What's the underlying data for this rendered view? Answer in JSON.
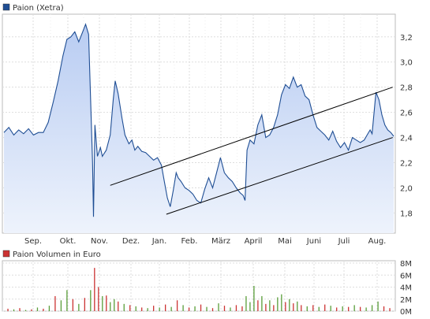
{
  "chart_data": [
    {
      "type": "area",
      "legend": "Paion (Xetra)",
      "currency": "",
      "x_ticks": [
        "Sep.",
        "Okt.",
        "Nov.",
        "Dez.",
        "Jan.",
        "Feb.",
        "März",
        "April",
        "Mai",
        "Juni",
        "Juli",
        "Aug."
      ],
      "y_ticks": [
        "3,2",
        "3,0",
        "2,8",
        "2,6",
        "2,4",
        "2,2",
        "2,0",
        "1,8"
      ],
      "y_tick_values": [
        3.2,
        3.0,
        2.8,
        2.6,
        2.4,
        2.2,
        2.0,
        1.8
      ],
      "ylim": [
        1.64,
        3.38
      ],
      "grid": true,
      "colors": {
        "line": "#1f4e94",
        "fill_top": "#b8ccf2",
        "fill_bottom": "#eef3fc",
        "trend": "#000000"
      },
      "series": [
        {
          "name": "Paion (Xetra)",
          "points": [
            [
              0.0,
              2.44
            ],
            [
              0.25,
              2.48
            ],
            [
              0.5,
              2.42
            ],
            [
              0.75,
              2.46
            ],
            [
              1.0,
              2.43
            ],
            [
              1.25,
              2.47
            ],
            [
              1.5,
              2.42
            ],
            [
              1.75,
              2.44
            ],
            [
              2.0,
              2.44
            ],
            [
              2.25,
              2.52
            ],
            [
              2.5,
              2.68
            ],
            [
              2.75,
              2.85
            ],
            [
              3.0,
              3.05
            ],
            [
              3.2,
              3.18
            ],
            [
              3.4,
              3.2
            ],
            [
              3.6,
              3.24
            ],
            [
              3.8,
              3.16
            ],
            [
              4.0,
              3.24
            ],
            [
              4.15,
              3.3
            ],
            [
              4.3,
              3.22
            ],
            [
              4.5,
              2.2
            ],
            [
              4.55,
              1.77
            ],
            [
              4.62,
              2.5
            ],
            [
              4.75,
              2.25
            ],
            [
              4.9,
              2.32
            ],
            [
              5.0,
              2.25
            ],
            [
              5.2,
              2.3
            ],
            [
              5.4,
              2.42
            ],
            [
              5.55,
              2.7
            ],
            [
              5.65,
              2.85
            ],
            [
              5.8,
              2.75
            ],
            [
              6.0,
              2.55
            ],
            [
              6.15,
              2.42
            ],
            [
              6.35,
              2.35
            ],
            [
              6.5,
              2.38
            ],
            [
              6.65,
              2.3
            ],
            [
              6.8,
              2.33
            ],
            [
              7.0,
              2.29
            ],
            [
              7.2,
              2.28
            ],
            [
              7.4,
              2.25
            ],
            [
              7.6,
              2.22
            ],
            [
              7.8,
              2.24
            ],
            [
              8.0,
              2.18
            ],
            [
              8.15,
              2.05
            ],
            [
              8.3,
              1.92
            ],
            [
              8.45,
              1.85
            ],
            [
              8.6,
              1.98
            ],
            [
              8.75,
              2.12
            ],
            [
              8.85,
              2.08
            ],
            [
              9.0,
              2.05
            ],
            [
              9.2,
              2.0
            ],
            [
              9.4,
              1.98
            ],
            [
              9.6,
              1.95
            ],
            [
              9.8,
              1.9
            ],
            [
              10.0,
              1.88
            ],
            [
              10.2,
              1.99
            ],
            [
              10.4,
              2.08
            ],
            [
              10.6,
              2.0
            ],
            [
              10.8,
              2.12
            ],
            [
              11.0,
              2.24
            ],
            [
              11.2,
              2.12
            ],
            [
              11.4,
              2.08
            ],
            [
              11.6,
              2.05
            ],
            [
              11.8,
              2.0
            ],
            [
              12.0,
              1.96
            ],
            [
              12.15,
              1.94
            ],
            [
              12.25,
              1.9
            ],
            [
              12.35,
              2.3
            ],
            [
              12.5,
              2.38
            ],
            [
              12.7,
              2.35
            ],
            [
              12.9,
              2.5
            ],
            [
              13.1,
              2.58
            ],
            [
              13.3,
              2.4
            ],
            [
              13.5,
              2.42
            ],
            [
              13.7,
              2.48
            ],
            [
              13.9,
              2.58
            ],
            [
              14.1,
              2.74
            ],
            [
              14.3,
              2.82
            ],
            [
              14.5,
              2.79
            ],
            [
              14.7,
              2.88
            ],
            [
              14.9,
              2.8
            ],
            [
              15.1,
              2.82
            ],
            [
              15.3,
              2.73
            ],
            [
              15.5,
              2.7
            ],
            [
              15.7,
              2.58
            ],
            [
              15.9,
              2.48
            ],
            [
              16.1,
              2.45
            ],
            [
              16.3,
              2.42
            ],
            [
              16.5,
              2.38
            ],
            [
              16.7,
              2.45
            ],
            [
              16.9,
              2.37
            ],
            [
              17.1,
              2.32
            ],
            [
              17.3,
              2.36
            ],
            [
              17.5,
              2.3
            ],
            [
              17.7,
              2.4
            ],
            [
              17.9,
              2.38
            ],
            [
              18.1,
              2.36
            ],
            [
              18.3,
              2.38
            ],
            [
              18.45,
              2.42
            ],
            [
              18.6,
              2.46
            ],
            [
              18.7,
              2.43
            ],
            [
              18.9,
              2.76
            ],
            [
              19.05,
              2.7
            ],
            [
              19.2,
              2.58
            ],
            [
              19.35,
              2.5
            ],
            [
              19.5,
              2.46
            ],
            [
              19.65,
              2.44
            ],
            [
              19.8,
              2.41
            ]
          ]
        }
      ],
      "trend_lines": [
        {
          "from": [
            5.4,
            2.02
          ],
          "to": [
            19.75,
            2.8
          ]
        },
        {
          "from": [
            8.25,
            1.79
          ],
          "to": [
            19.75,
            2.4
          ]
        }
      ]
    },
    {
      "type": "bar",
      "legend": "Paion Volumen in Euro",
      "y_ticks": [
        "8M",
        "6M",
        "4M",
        "2M",
        "0M"
      ],
      "y_tick_values": [
        8,
        6,
        4,
        2,
        0
      ],
      "ylim": [
        0,
        8
      ],
      "unit": "M",
      "colors": {
        "up": "#5a9e3a",
        "down": "#cc3333",
        "legend_box": "#cc3333"
      },
      "bars": [
        [
          0.2,
          0.4,
          "d"
        ],
        [
          0.5,
          0.3,
          "u"
        ],
        [
          0.8,
          0.5,
          "d"
        ],
        [
          1.1,
          0.2,
          "u"
        ],
        [
          1.4,
          0.3,
          "d"
        ],
        [
          1.7,
          0.6,
          "u"
        ],
        [
          2.0,
          0.4,
          "d"
        ],
        [
          2.3,
          0.9,
          "u"
        ],
        [
          2.6,
          2.5,
          "d"
        ],
        [
          2.9,
          1.8,
          "u"
        ],
        [
          3.2,
          3.5,
          "u"
        ],
        [
          3.5,
          2.0,
          "d"
        ],
        [
          3.8,
          1.2,
          "u"
        ],
        [
          4.1,
          2.2,
          "d"
        ],
        [
          4.4,
          3.5,
          "u"
        ],
        [
          4.6,
          7.2,
          "d"
        ],
        [
          4.8,
          4.0,
          "d"
        ],
        [
          5.0,
          2.5,
          "u"
        ],
        [
          5.2,
          2.6,
          "d"
        ],
        [
          5.4,
          1.5,
          "u"
        ],
        [
          5.6,
          2.0,
          "u"
        ],
        [
          5.8,
          1.6,
          "d"
        ],
        [
          6.1,
          1.2,
          "u"
        ],
        [
          6.4,
          1.0,
          "d"
        ],
        [
          6.7,
          0.8,
          "u"
        ],
        [
          7.0,
          0.6,
          "d"
        ],
        [
          7.3,
          0.5,
          "u"
        ],
        [
          7.6,
          0.9,
          "d"
        ],
        [
          7.9,
          0.6,
          "u"
        ],
        [
          8.2,
          1.1,
          "d"
        ],
        [
          8.5,
          0.7,
          "u"
        ],
        [
          8.8,
          1.8,
          "d"
        ],
        [
          9.1,
          1.0,
          "u"
        ],
        [
          9.4,
          0.6,
          "d"
        ],
        [
          9.7,
          0.8,
          "u"
        ],
        [
          10.0,
          1.1,
          "d"
        ],
        [
          10.3,
          0.7,
          "u"
        ],
        [
          10.6,
          0.5,
          "d"
        ],
        [
          10.9,
          1.3,
          "u"
        ],
        [
          11.2,
          0.9,
          "d"
        ],
        [
          11.5,
          0.6,
          "u"
        ],
        [
          11.8,
          1.0,
          "d"
        ],
        [
          12.1,
          0.8,
          "d"
        ],
        [
          12.3,
          2.5,
          "u"
        ],
        [
          12.5,
          1.5,
          "u"
        ],
        [
          12.7,
          4.2,
          "u"
        ],
        [
          12.9,
          1.8,
          "d"
        ],
        [
          13.1,
          2.5,
          "u"
        ],
        [
          13.3,
          1.2,
          "d"
        ],
        [
          13.5,
          1.8,
          "u"
        ],
        [
          13.7,
          1.0,
          "d"
        ],
        [
          13.9,
          2.3,
          "u"
        ],
        [
          14.1,
          2.8,
          "u"
        ],
        [
          14.3,
          1.5,
          "d"
        ],
        [
          14.5,
          2.0,
          "u"
        ],
        [
          14.7,
          1.3,
          "d"
        ],
        [
          14.9,
          1.6,
          "u"
        ],
        [
          15.1,
          1.0,
          "d"
        ],
        [
          15.4,
          0.8,
          "u"
        ],
        [
          15.7,
          1.0,
          "d"
        ],
        [
          16.0,
          0.7,
          "u"
        ],
        [
          16.3,
          1.1,
          "d"
        ],
        [
          16.6,
          0.9,
          "u"
        ],
        [
          16.9,
          0.6,
          "d"
        ],
        [
          17.2,
          0.8,
          "u"
        ],
        [
          17.5,
          0.7,
          "d"
        ],
        [
          17.8,
          1.0,
          "u"
        ],
        [
          18.1,
          0.7,
          "d"
        ],
        [
          18.4,
          0.6,
          "u"
        ],
        [
          18.7,
          1.0,
          "u"
        ],
        [
          19.0,
          1.6,
          "u"
        ],
        [
          19.3,
          0.8,
          "d"
        ],
        [
          19.6,
          0.5,
          "d"
        ]
      ]
    }
  ]
}
